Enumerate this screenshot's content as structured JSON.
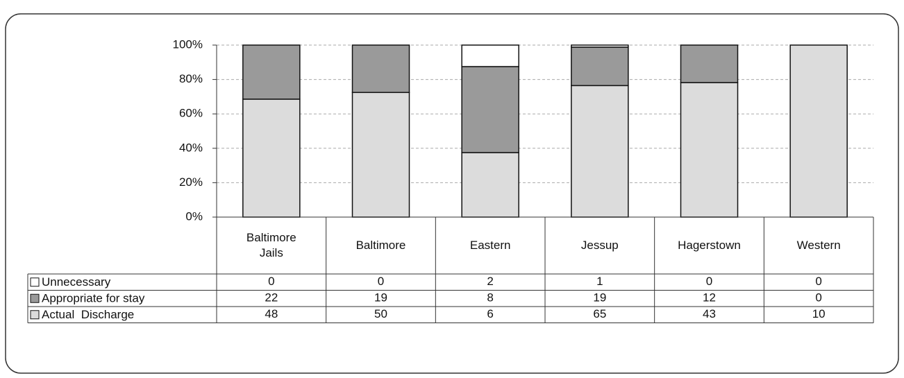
{
  "chart_data": {
    "type": "bar",
    "stacked": "percent",
    "categories": [
      "Baltimore\nJails",
      "Baltimore",
      "Eastern",
      "Jessup",
      "Hagerstown",
      "Western"
    ],
    "series": [
      {
        "name": "Unnecessary",
        "color": "#ffffff",
        "values": [
          0,
          0,
          2,
          1,
          0,
          0
        ]
      },
      {
        "name": "Appropriate for stay",
        "color": "#9a9a9a",
        "values": [
          22,
          19,
          8,
          19,
          12,
          0
        ]
      },
      {
        "name": "Actual  Discharge",
        "color": "#dcdcdc",
        "values": [
          48,
          50,
          6,
          65,
          43,
          10
        ]
      }
    ],
    "ylim": [
      0,
      100
    ],
    "yticks": [
      {
        "value": 0,
        "label": "0%"
      },
      {
        "value": 20,
        "label": "20%"
      },
      {
        "value": 40,
        "label": "40%"
      },
      {
        "value": 60,
        "label": "60%"
      },
      {
        "value": 80,
        "label": "80%"
      },
      {
        "value": 100,
        "label": "100%"
      }
    ],
    "grid": true
  }
}
